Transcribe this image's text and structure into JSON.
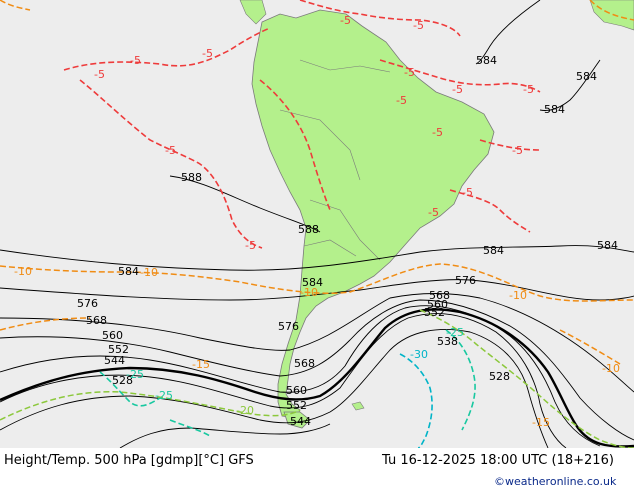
{
  "footer": {
    "title": "Height/Temp. 500 hPa [gdmp][°C] GFS",
    "datetime": "Tu 16-12-2025 18:00 UTC (18+216)",
    "credit": "©weatheronline.co.uk"
  },
  "height_labels": [
    "588",
    "584",
    "584",
    "584",
    "584",
    "588",
    "584",
    "584",
    "576",
    "568",
    "560",
    "552",
    "544",
    "528",
    "560",
    "552",
    "544",
    "568",
    "576",
    "584",
    "576",
    "568",
    "560",
    "552",
    "538",
    "528"
  ],
  "temp_labels": [
    "-5",
    "-5",
    "-5",
    "-5",
    "-5",
    "-5",
    "-5",
    "-5",
    "-5",
    "-5",
    "-5",
    "-5",
    "-5",
    "-5",
    "-5",
    "-10",
    "-10",
    "-10",
    "-10",
    "-15",
    "-20",
    "-25",
    "-25",
    "-30",
    "-25",
    "-15",
    "-10"
  ],
  "colors": {
    "ocean": "#ededed",
    "land": "#b4f08c",
    "height_contour": "#000000",
    "temp_minus5": "#ee3b3b",
    "temp_minus10": "#f08c14",
    "temp_minus20": "#8cc83c",
    "temp_minus25": "#18c8a0",
    "temp_minus30": "#00b4c8"
  }
}
